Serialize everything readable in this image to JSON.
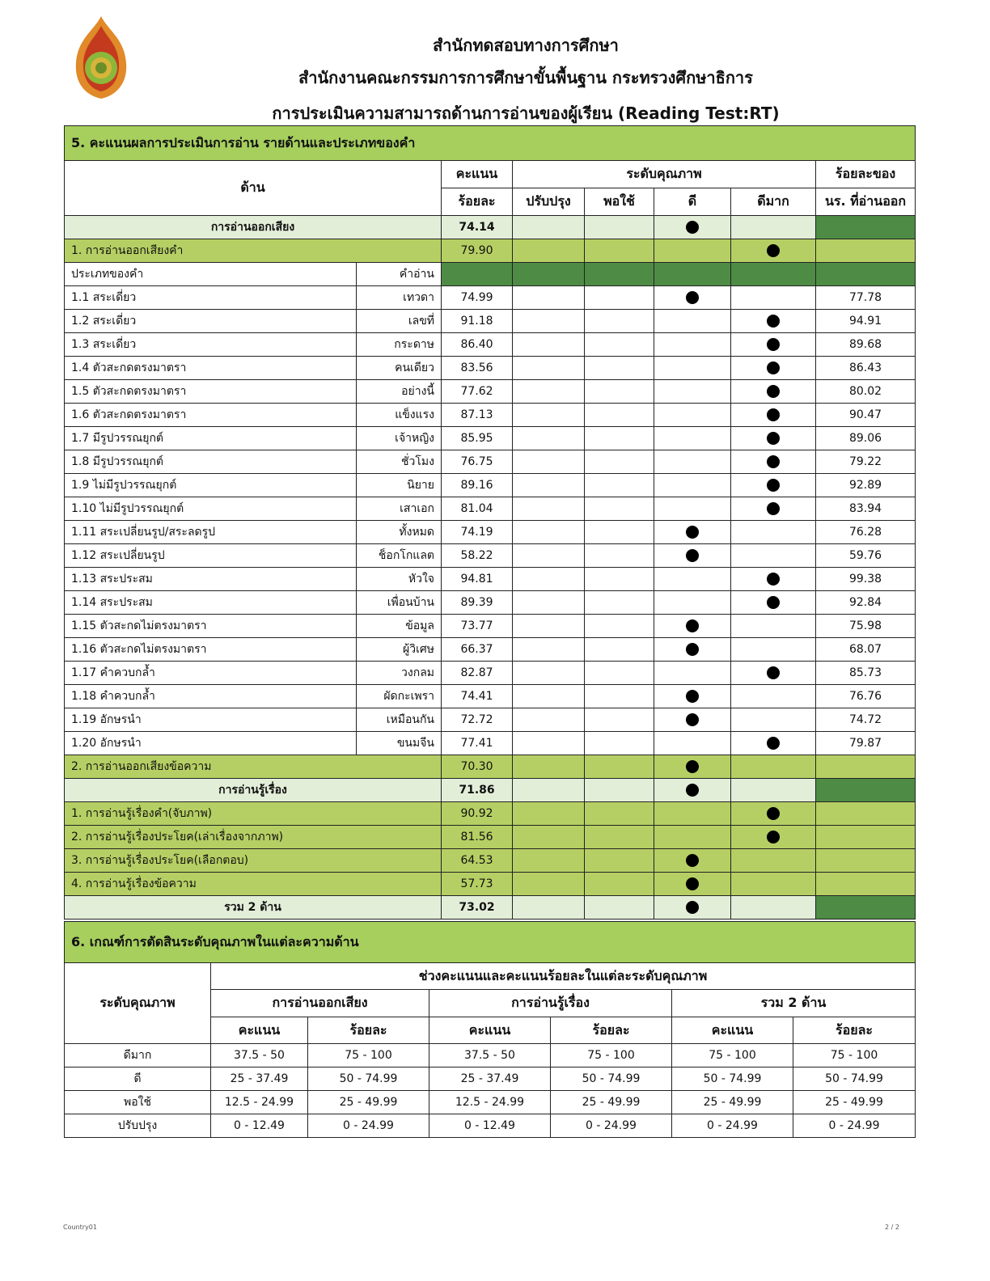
{
  "header": {
    "line1": "สำนักทดสอบทางการศึกษา",
    "line2": "สำนักงานคณะกรรมการการศึกษาขั้นพื้นฐาน กระทรวงศึกษาธิการ",
    "line3": "การประเมินความสามารถด้านการอ่านของผู้เรียน (Reading Test:RT)"
  },
  "colors": {
    "section": "#a6cf5e",
    "main_row": "#e3eed9",
    "sub_row": "#b6cf64",
    "dark": "#4e8c45"
  },
  "section5": {
    "title": "5. คะแนนผลการประเมินการอ่าน รายด้านและประเภทของคำ",
    "headers": {
      "dimension": "ด้าน",
      "score1": "คะแนน",
      "score2": "ร้อยละ",
      "level": "ระดับคุณภาพ",
      "levels": [
        "ปรับปรุง",
        "พอใช้",
        "ดี",
        "ดีมาก"
      ],
      "pct1": "ร้อยละของ",
      "pct2": "นร. ที่อ่านออก"
    },
    "rows": [
      {
        "type": "main",
        "label": "การอ่านออกเสียง",
        "score": "74.14",
        "level": 2
      },
      {
        "type": "sub",
        "label": "1. การอ่านออกเสียงคำ",
        "score": "79.90",
        "level": 3
      },
      {
        "type": "typehdr",
        "label": "ประเภทของคำ",
        "word": "คำอ่าน"
      },
      {
        "type": "item",
        "label": "1.1 สระเดี่ยว",
        "word": "เทวดา",
        "score": "74.99",
        "level": 2,
        "pct": "77.78"
      },
      {
        "type": "item",
        "label": "1.2 สระเดี่ยว",
        "word": "เลขที่",
        "score": "91.18",
        "level": 3,
        "pct": "94.91"
      },
      {
        "type": "item",
        "label": "1.3 สระเดี่ยว",
        "word": "กระดาษ",
        "score": "86.40",
        "level": 3,
        "pct": "89.68"
      },
      {
        "type": "item",
        "label": "1.4 ตัวสะกดตรงมาตรา",
        "word": "คนเดียว",
        "score": "83.56",
        "level": 3,
        "pct": "86.43"
      },
      {
        "type": "item",
        "label": "1.5 ตัวสะกดตรงมาตรา",
        "word": "อย่างนี้",
        "score": "77.62",
        "level": 3,
        "pct": "80.02"
      },
      {
        "type": "item",
        "label": "1.6 ตัวสะกดตรงมาตรา",
        "word": "แข็งแรง",
        "score": "87.13",
        "level": 3,
        "pct": "90.47"
      },
      {
        "type": "item",
        "label": "1.7 มีรูปวรรณยุกต์",
        "word": "เจ้าหญิง",
        "score": "85.95",
        "level": 3,
        "pct": "89.06"
      },
      {
        "type": "item",
        "label": "1.8 มีรูปวรรณยุกต์",
        "word": "ชั่วโมง",
        "score": "76.75",
        "level": 3,
        "pct": "79.22"
      },
      {
        "type": "item",
        "label": "1.9 ไม่มีรูปวรรณยุกต์",
        "word": "นิยาย",
        "score": "89.16",
        "level": 3,
        "pct": "92.89"
      },
      {
        "type": "item",
        "label": "1.10 ไม่มีรูปวรรณยุกต์",
        "word": "เสาเอก",
        "score": "81.04",
        "level": 3,
        "pct": "83.94"
      },
      {
        "type": "item",
        "label": "1.11 สระเปลี่ยนรูป/สระลดรูป",
        "word": "ทั้งหมด",
        "score": "74.19",
        "level": 2,
        "pct": "76.28"
      },
      {
        "type": "item",
        "label": "1.12 สระเปลี่ยนรูป",
        "word": "ช็อกโกแลต",
        "score": "58.22",
        "level": 2,
        "pct": "59.76"
      },
      {
        "type": "item",
        "label": "1.13 สระประสม",
        "word": "หัวใจ",
        "score": "94.81",
        "level": 3,
        "pct": "99.38"
      },
      {
        "type": "item",
        "label": "1.14 สระประสม",
        "word": "เพื่อนบ้าน",
        "score": "89.39",
        "level": 3,
        "pct": "92.84"
      },
      {
        "type": "item",
        "label": "1.15 ตัวสะกดไม่ตรงมาตรา",
        "word": "ข้อมูล",
        "score": "73.77",
        "level": 2,
        "pct": "75.98"
      },
      {
        "type": "item",
        "label": "1.16 ตัวสะกดไม่ตรงมาตรา",
        "word": "ผู้วิเศษ",
        "score": "66.37",
        "level": 2,
        "pct": "68.07"
      },
      {
        "type": "item",
        "label": "1.17 คำควบกล้ำ",
        "word": "วงกลม",
        "score": "82.87",
        "level": 3,
        "pct": "85.73"
      },
      {
        "type": "item",
        "label": "1.18 คำควบกล้ำ",
        "word": "ผัดกะเพรา",
        "score": "74.41",
        "level": 2,
        "pct": "76.76"
      },
      {
        "type": "item",
        "label": "1.19 อักษรนำ",
        "word": "เหมือนกัน",
        "score": "72.72",
        "level": 2,
        "pct": "74.72"
      },
      {
        "type": "item",
        "label": "1.20 อักษรนำ",
        "word": "ขนมจีน",
        "score": "77.41",
        "level": 3,
        "pct": "79.87"
      },
      {
        "type": "sub",
        "label": "2. การอ่านออกเสียงข้อความ",
        "score": "70.30",
        "level": 2
      },
      {
        "type": "main",
        "label": "การอ่านรู้เรื่อง",
        "score": "71.86",
        "level": 2
      },
      {
        "type": "sub",
        "label": "1. การอ่านรู้เรื่องคำ(จับภาพ)",
        "score": "90.92",
        "level": 3
      },
      {
        "type": "sub",
        "label": "2. การอ่านรู้เรื่องประโยค(เล่าเรื่องจากภาพ)",
        "score": "81.56",
        "level": 3
      },
      {
        "type": "sub",
        "label": "3. การอ่านรู้เรื่องประโยค(เลือกตอบ)",
        "score": "64.53",
        "level": 2
      },
      {
        "type": "sub",
        "label": "4. การอ่านรู้เรื่องข้อความ",
        "score": "57.73",
        "level": 2
      },
      {
        "type": "main",
        "label": "รวม 2 ด้าน",
        "score": "73.02",
        "level": 2
      }
    ]
  },
  "section6": {
    "title": "6. เกณฑ์การตัดสินระดับคุณภาพในแต่ละความด้าน",
    "level_header": "ระดับคุณภาพ",
    "range_header": "ช่วงคะแนนและคะแนนร้อยละในแต่ละระดับคุณภาพ",
    "groups": [
      "การอ่านออกเสียง",
      "การอ่านรู้เรื่อง",
      "รวม 2 ด้าน"
    ],
    "subheaders": [
      "คะแนน",
      "ร้อยละ",
      "คะแนน",
      "ร้อยละ",
      "คะแนน",
      "ร้อยละ"
    ],
    "rows": [
      {
        "level": "ดีมาก",
        "values": [
          "37.5 - 50",
          "75 - 100",
          "37.5 - 50",
          "75 - 100",
          "75 - 100",
          "75 - 100"
        ]
      },
      {
        "level": "ดี",
        "values": [
          "25 - 37.49",
          "50 - 74.99",
          "25 - 37.49",
          "50 - 74.99",
          "50 - 74.99",
          "50 - 74.99"
        ]
      },
      {
        "level": "พอใช้",
        "values": [
          "12.5 - 24.99",
          "25 - 49.99",
          "12.5 - 24.99",
          "25 - 49.99",
          "25 - 49.99",
          "25 - 49.99"
        ]
      },
      {
        "level": "ปรับปรุง",
        "values": [
          "0 - 12.49",
          "0 - 24.99",
          "0 - 12.49",
          "0 - 24.99",
          "0 - 24.99",
          "0 - 24.99"
        ]
      }
    ]
  },
  "footer": {
    "left": "Country01",
    "right": "2 / 2"
  }
}
